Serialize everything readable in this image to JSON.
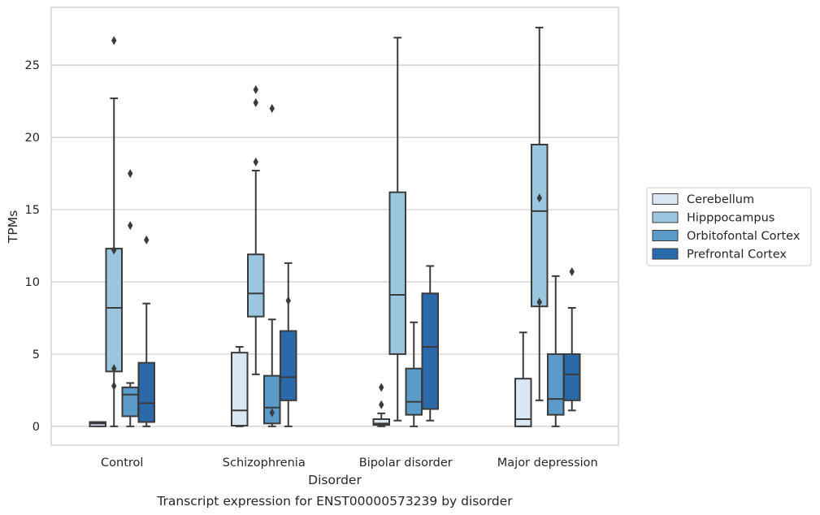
{
  "chart_data": {
    "type": "box",
    "caption": "Transcript expression for ENST00000573239 by disorder",
    "xlabel": "Disorder",
    "ylabel": "TPMs",
    "ylim": [
      -1.3,
      29.0
    ],
    "yticks": [
      0,
      5,
      10,
      15,
      20,
      25
    ],
    "grid": "horizontal",
    "legend_position": "right",
    "categories": [
      "Control",
      "Schizophrenia",
      "Bipolar disorder",
      "Major depression"
    ],
    "series": [
      {
        "name": "Cerebellum",
        "color": "#dae8f5",
        "boxes": [
          {
            "whislo": 0.0,
            "q1": 0.0,
            "med": 0.2,
            "q3": 0.3,
            "whishi": 0.3,
            "fliers": []
          },
          {
            "whislo": 0.0,
            "q1": 0.05,
            "med": 1.1,
            "q3": 5.1,
            "whishi": 5.5,
            "fliers": []
          },
          {
            "whislo": 0.0,
            "q1": 0.1,
            "med": 0.2,
            "q3": 0.5,
            "whishi": 0.9,
            "fliers": [
              1.5,
              2.7
            ]
          },
          {
            "whislo": 0.0,
            "q1": 0.0,
            "med": 0.5,
            "q3": 3.3,
            "whishi": 6.5,
            "fliers": []
          }
        ]
      },
      {
        "name": "Hipppocampus",
        "color": "#9ac7df",
        "boxes": [
          {
            "whislo": 0.0,
            "q1": 3.8,
            "med": 8.2,
            "q3": 12.3,
            "whishi": 22.7,
            "fliers": [
              2.8,
              4.0,
              12.2,
              26.7
            ]
          },
          {
            "whislo": 3.6,
            "q1": 7.6,
            "med": 9.2,
            "q3": 11.9,
            "whishi": 17.7,
            "fliers": [
              18.3,
              22.4,
              23.3
            ]
          },
          {
            "whislo": 0.4,
            "q1": 5.0,
            "med": 9.1,
            "q3": 16.2,
            "whishi": 26.9,
            "fliers": []
          },
          {
            "whislo": 1.8,
            "q1": 8.3,
            "med": 14.9,
            "q3": 19.5,
            "whishi": 27.6,
            "fliers": [
              8.6,
              15.8
            ]
          }
        ]
      },
      {
        "name": "Orbitofontal Cortex",
        "color": "#5a9bc9",
        "boxes": [
          {
            "whislo": 0.0,
            "q1": 0.7,
            "med": 2.2,
            "q3": 2.7,
            "whishi": 3.0,
            "fliers": [
              13.9,
              17.5
            ]
          },
          {
            "whislo": 0.0,
            "q1": 0.2,
            "med": 1.3,
            "q3": 3.5,
            "whishi": 7.4,
            "fliers": [
              0.95,
              22.0
            ]
          },
          {
            "whislo": 0.0,
            "q1": 0.8,
            "med": 1.7,
            "q3": 4.0,
            "whishi": 7.2,
            "fliers": []
          },
          {
            "whislo": 0.0,
            "q1": 0.8,
            "med": 1.9,
            "q3": 5.0,
            "whishi": 10.4,
            "fliers": []
          }
        ]
      },
      {
        "name": "Prefrontal Cortex",
        "color": "#2a6aab",
        "boxes": [
          {
            "whislo": 0.0,
            "q1": 0.3,
            "med": 1.6,
            "q3": 4.4,
            "whishi": 8.5,
            "fliers": [
              12.9
            ]
          },
          {
            "whislo": 0.0,
            "q1": 1.8,
            "med": 3.4,
            "q3": 6.6,
            "whishi": 11.3,
            "fliers": [
              8.7
            ]
          },
          {
            "whislo": 0.4,
            "q1": 1.2,
            "med": 5.5,
            "q3": 9.2,
            "whishi": 11.1,
            "fliers": []
          },
          {
            "whislo": 1.1,
            "q1": 1.8,
            "med": 3.6,
            "q3": 5.0,
            "whishi": 8.2,
            "fliers": [
              10.7
            ]
          }
        ]
      }
    ]
  }
}
